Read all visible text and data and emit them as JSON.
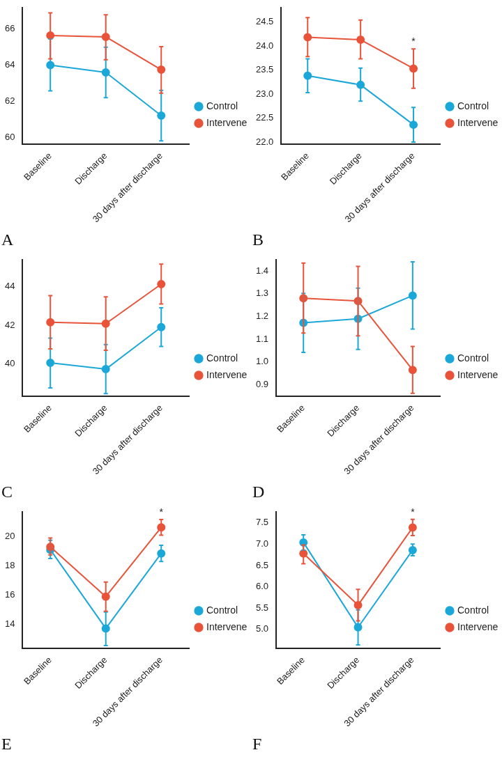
{
  "chart_data": [
    {
      "type": "line",
      "categories": [
        "Baseline",
        "Discharge",
        "30 days after discharge"
      ],
      "ylim": [
        59.6,
        67.2
      ],
      "yticks": [
        60,
        62,
        64,
        66
      ],
      "legend": "right",
      "marker": "circle",
      "annotations": [
        "A"
      ],
      "series": [
        {
          "name": "Control",
          "color": "#1ba8d8",
          "values": [
            64.0,
            63.6,
            61.2
          ],
          "errors": [
            [
              62.57,
              65.45
            ],
            [
              62.2,
              65.0
            ],
            [
              59.8,
              62.6
            ]
          ]
        },
        {
          "name": "Intervene",
          "color": "#e8533a",
          "values": [
            65.65,
            65.57,
            63.75
          ],
          "errors": [
            [
              64.35,
              66.9
            ],
            [
              64.3,
              66.8
            ],
            [
              62.45,
              65.03
            ]
          ]
        }
      ]
    },
    {
      "type": "line",
      "categories": [
        "Baseline",
        "Discharge",
        "30 days after discharge"
      ],
      "ylim": [
        21.95,
        24.8
      ],
      "yticks": [
        {
          "value": 22,
          "label": "22.0"
        },
        22.5,
        {
          "value": 23,
          "label": "23.0"
        },
        23.5,
        {
          "value": 24,
          "label": "24.0"
        },
        24.5
      ],
      "legend": "right",
      "marker": "circle",
      "annotations": [
        "B",
        "*"
      ],
      "series": [
        {
          "name": "Control",
          "color": "#1ba8d8",
          "values": [
            23.38,
            23.19,
            22.36
          ],
          "errors": [
            [
              23.03,
              23.73
            ],
            [
              22.85,
              23.54
            ],
            [
              22.0,
              22.72
            ]
          ]
        },
        {
          "name": "Intervene",
          "color": "#e8533a",
          "values": [
            24.18,
            24.13,
            23.53
          ],
          "errors": [
            [
              23.78,
              24.59
            ],
            [
              23.73,
              24.54
            ],
            [
              23.12,
              23.94
            ]
          ]
        }
      ]
    },
    {
      "type": "line",
      "categories": [
        "Baseline",
        "Discharge",
        "30 days after discharge"
      ],
      "ylim": [
        38.3,
        45.4
      ],
      "yticks": [
        40,
        42,
        44
      ],
      "legend": "right",
      "marker": "circle",
      "annotations": [
        "C"
      ],
      "series": [
        {
          "name": "Control",
          "color": "#1ba8d8",
          "values": [
            40.05,
            39.72,
            41.9
          ],
          "errors": [
            [
              38.75,
              41.33
            ],
            [
              38.45,
              41.0
            ],
            [
              40.9,
              42.9
            ]
          ]
        },
        {
          "name": "Intervene",
          "color": "#e8533a",
          "values": [
            42.15,
            42.08,
            44.13
          ],
          "errors": [
            [
              40.77,
              43.53
            ],
            [
              40.7,
              43.47
            ],
            [
              43.1,
              45.17
            ]
          ]
        }
      ]
    },
    {
      "type": "line",
      "categories": [
        "Baseline",
        "Discharge",
        "30 days after discharge"
      ],
      "ylim": [
        0.848,
        1.45
      ],
      "yticks": [
        0.9,
        {
          "value": 1,
          "label": "1.0"
        },
        1.1,
        1.2,
        1.3,
        1.4
      ],
      "legend": "right",
      "marker": "circle",
      "annotations": [
        "D"
      ],
      "series": [
        {
          "name": "Control",
          "color": "#1ba8d8",
          "values": [
            1.172,
            1.19,
            1.292
          ],
          "errors": [
            [
              1.042,
              1.302
            ],
            [
              1.055,
              1.325
            ],
            [
              1.145,
              1.44
            ]
          ]
        },
        {
          "name": "Intervene",
          "color": "#e8533a",
          "values": [
            1.28,
            1.268,
            0.965
          ],
          "errors": [
            [
              1.127,
              1.435
            ],
            [
              1.115,
              1.42
            ],
            [
              0.862,
              1.068
            ]
          ]
        }
      ]
    },
    {
      "type": "line",
      "categories": [
        "Baseline",
        "Discharge",
        "30 days after discharge"
      ],
      "ylim": [
        12.34,
        21.7
      ],
      "yticks": [
        14,
        16,
        18,
        20
      ],
      "legend": "right",
      "marker": "circle",
      "annotations": [
        "E",
        "*"
      ],
      "series": [
        {
          "name": "Control",
          "color": "#1ba8d8",
          "values": [
            19.1,
            13.72,
            18.85
          ],
          "errors": [
            [
              18.5,
              19.75
            ],
            [
              12.55,
              14.85
            ],
            [
              18.3,
              19.4
            ]
          ]
        },
        {
          "name": "Intervene",
          "color": "#e8533a",
          "values": [
            19.3,
            15.9,
            20.63
          ],
          "errors": [
            [
              18.75,
              19.9
            ],
            [
              14.9,
              16.9
            ],
            [
              20.1,
              21.17
            ]
          ]
        }
      ]
    },
    {
      "type": "line",
      "categories": [
        "Baseline",
        "Discharge",
        "30 days after discharge"
      ],
      "ylim": [
        4.55,
        7.76
      ],
      "yticks": [
        {
          "value": 5,
          "label": "5.0"
        },
        5.5,
        {
          "value": 6,
          "label": "6.0"
        },
        6.5,
        {
          "value": 7,
          "label": "7.0"
        },
        7.5
      ],
      "legend": "right",
      "marker": "circle",
      "annotations": [
        "F",
        "*"
      ],
      "series": [
        {
          "name": "Control",
          "color": "#1ba8d8",
          "values": [
            7.04,
            5.05,
            6.86
          ],
          "errors": [
            [
              6.86,
              7.22
            ],
            [
              4.64,
              5.46
            ],
            [
              6.73,
              7.0
            ]
          ]
        },
        {
          "name": "Intervene",
          "color": "#e8533a",
          "values": [
            6.78,
            5.57,
            7.39
          ],
          "errors": [
            [
              6.54,
              6.98
            ],
            [
              5.2,
              5.94
            ],
            [
              7.2,
              7.58
            ]
          ]
        }
      ]
    }
  ]
}
